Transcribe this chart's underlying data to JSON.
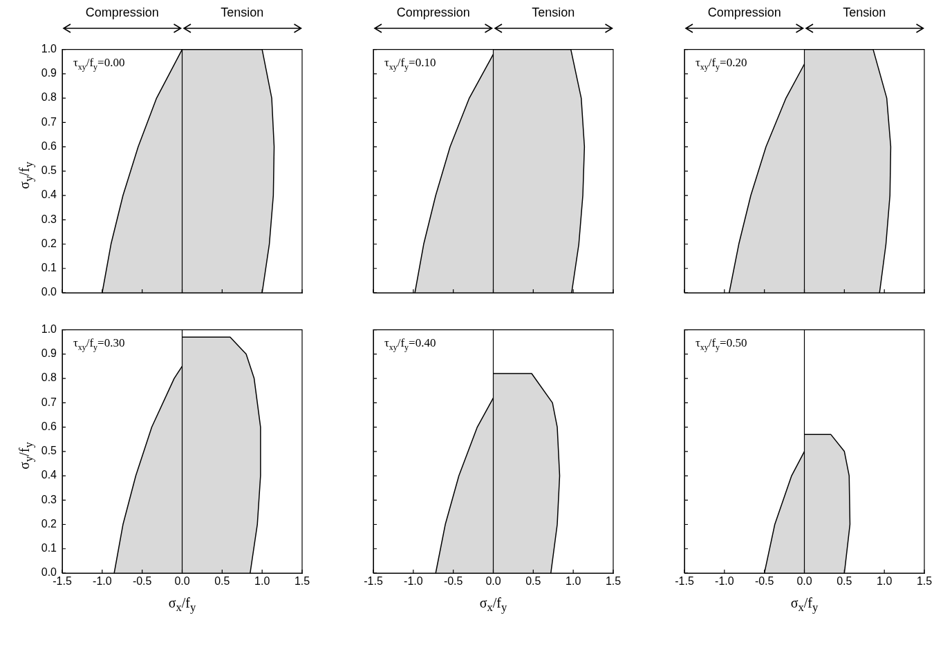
{
  "chart_data": [
    {
      "type": "area",
      "annotations": [
        "Compression",
        "Tension",
        "τ$_{xy}$/f$_{y}$=0.00"
      ],
      "ylabel": "σ$_{y}$/f$_{y}$",
      "tick_labels": "y",
      "xlim": [
        -1.5,
        1.5
      ],
      "xticks": [
        {
          "value": -1.5,
          "label": null
        },
        {
          "value": -1,
          "label": null
        },
        {
          "value": -0.5,
          "label": null
        },
        {
          "value": 0,
          "label": null
        },
        {
          "value": 0.5,
          "label": null
        },
        {
          "value": 1,
          "label": null
        },
        {
          "value": 1.5,
          "label": null
        }
      ],
      "ylim": [
        0,
        1
      ],
      "yticks": [
        {
          "value": 0,
          "label": "0.0"
        },
        {
          "value": 0.1,
          "label": "0.1"
        },
        {
          "value": 0.2,
          "label": "0.2"
        },
        {
          "value": 0.3,
          "label": "0.3"
        },
        {
          "value": 0.4,
          "label": "0.4"
        },
        {
          "value": 0.5,
          "label": "0.5"
        },
        {
          "value": 0.6,
          "label": "0.6"
        },
        {
          "value": 0.7,
          "label": "0.7"
        },
        {
          "value": 0.8,
          "label": "0.8"
        },
        {
          "value": 0.9,
          "label": "0.9"
        },
        {
          "value": 1,
          "label": "1.0"
        }
      ],
      "ref_lines": [
        {
          "axis": "x",
          "value": 0
        }
      ],
      "series": [
        {
          "color": "#000000",
          "x": [
            -1.0,
            -0.89,
            -0.74,
            -0.55,
            -0.32,
            0
          ],
          "values": [
            0,
            0.2,
            0.4,
            0.6,
            0.8,
            1.0
          ]
        },
        {
          "color": "#000000",
          "x": [
            0,
            1.0,
            1.12,
            1.15,
            1.14,
            1.09,
            1.0
          ],
          "values": [
            1.0,
            1.0,
            0.8,
            0.6,
            0.4,
            0.2,
            0
          ]
        }
      ]
    },
    {
      "type": "area",
      "annotations": [
        "Compression",
        "Tension",
        "τ$_{xy}$/f$_{y}$=0.10"
      ],
      "tick_labels": false,
      "xlim": [
        -1.5,
        1.5
      ],
      "xticks": [
        {
          "value": -1.5,
          "label": null
        },
        {
          "value": -1,
          "label": null
        },
        {
          "value": -0.5,
          "label": null
        },
        {
          "value": 0,
          "label": null
        },
        {
          "value": 0.5,
          "label": null
        },
        {
          "value": 1,
          "label": null
        },
        {
          "value": 1.5,
          "label": null
        }
      ],
      "ylim": [
        0,
        1
      ],
      "yticks": [
        {
          "value": 0,
          "label": null
        },
        {
          "value": 0.1,
          "label": null
        },
        {
          "value": 0.2,
          "label": null
        },
        {
          "value": 0.3,
          "label": null
        },
        {
          "value": 0.4,
          "label": null
        },
        {
          "value": 0.5,
          "label": null
        },
        {
          "value": 0.6,
          "label": null
        },
        {
          "value": 0.7,
          "label": null
        },
        {
          "value": 0.8,
          "label": null
        },
        {
          "value": 0.9,
          "label": null
        },
        {
          "value": 1,
          "label": null
        }
      ],
      "ref_lines": [
        {
          "axis": "x",
          "value": 0
        }
      ],
      "series": [
        {
          "color": "#000000",
          "x": [
            -0.98,
            -0.87,
            -0.72,
            -0.54,
            -0.3,
            0
          ],
          "values": [
            0,
            0.2,
            0.4,
            0.6,
            0.8,
            0.98
          ]
        },
        {
          "color": "#000000",
          "x": [
            0,
            0.97,
            1.1,
            1.14,
            1.12,
            1.07,
            0.98
          ],
          "values": [
            1.0,
            1.0,
            0.8,
            0.6,
            0.4,
            0.2,
            0
          ]
        }
      ]
    },
    {
      "type": "area",
      "annotations": [
        "Compression",
        "Tension",
        "τ$_{xy}$/f$_{y}$=0.20"
      ],
      "tick_labels": false,
      "xlim": [
        -1.5,
        1.5
      ],
      "xticks": [
        {
          "value": -1.5,
          "label": null
        },
        {
          "value": -1,
          "label": null
        },
        {
          "value": -0.5,
          "label": null
        },
        {
          "value": 0,
          "label": null
        },
        {
          "value": 0.5,
          "label": null
        },
        {
          "value": 1,
          "label": null
        },
        {
          "value": 1.5,
          "label": null
        }
      ],
      "ylim": [
        0,
        1
      ],
      "yticks": [
        {
          "value": 0,
          "label": null
        },
        {
          "value": 0.1,
          "label": null
        },
        {
          "value": 0.2,
          "label": null
        },
        {
          "value": 0.3,
          "label": null
        },
        {
          "value": 0.4,
          "label": null
        },
        {
          "value": 0.5,
          "label": null
        },
        {
          "value": 0.6,
          "label": null
        },
        {
          "value": 0.7,
          "label": null
        },
        {
          "value": 0.8,
          "label": null
        },
        {
          "value": 0.9,
          "label": null
        },
        {
          "value": 1,
          "label": null
        }
      ],
      "ref_lines": [
        {
          "axis": "x",
          "value": 0
        }
      ],
      "series": [
        {
          "color": "#000000",
          "x": [
            -0.94,
            -0.82,
            -0.67,
            -0.48,
            -0.23,
            0
          ],
          "values": [
            0,
            0.2,
            0.4,
            0.6,
            0.8,
            0.94
          ]
        },
        {
          "color": "#000000",
          "x": [
            0,
            0.86,
            1.03,
            1.08,
            1.07,
            1.02,
            0.94
          ],
          "values": [
            1.0,
            1.0,
            0.8,
            0.6,
            0.4,
            0.2,
            0
          ]
        }
      ]
    },
    {
      "type": "area",
      "annotations": [
        "τ$_{xy}$/f$_{y}$=0.30"
      ],
      "ylabel": "σ$_{y}$/f$_{y}$",
      "xlabel": "σ$_{x}$/f$_{y}$",
      "xlim": [
        -1.5,
        1.5
      ],
      "xticks": [
        {
          "value": -1.5,
          "label": "-1.5"
        },
        {
          "value": -1,
          "label": "-1.0"
        },
        {
          "value": -0.5,
          "label": "-0.5"
        },
        {
          "value": 0,
          "label": "0.0"
        },
        {
          "value": 0.5,
          "label": "0.5"
        },
        {
          "value": 1,
          "label": "1.0"
        },
        {
          "value": 1.5,
          "label": "1.5"
        }
      ],
      "ylim": [
        0,
        1
      ],
      "yticks": [
        {
          "value": 0,
          "label": "0.0"
        },
        {
          "value": 0.1,
          "label": "0.1"
        },
        {
          "value": 0.2,
          "label": "0.2"
        },
        {
          "value": 0.3,
          "label": "0.3"
        },
        {
          "value": 0.4,
          "label": "0.4"
        },
        {
          "value": 0.5,
          "label": "0.5"
        },
        {
          "value": 0.6,
          "label": "0.6"
        },
        {
          "value": 0.7,
          "label": "0.7"
        },
        {
          "value": 0.8,
          "label": "0.8"
        },
        {
          "value": 0.9,
          "label": "0.9"
        },
        {
          "value": 1,
          "label": "1.0"
        }
      ],
      "ref_lines": [
        {
          "axis": "x",
          "value": 0
        }
      ],
      "series": [
        {
          "color": "#000000",
          "x": [
            -0.85,
            -0.74,
            -0.58,
            -0.38,
            -0.1,
            0
          ],
          "values": [
            0,
            0.2,
            0.4,
            0.6,
            0.8,
            0.85
          ]
        },
        {
          "color": "#000000",
          "x": [
            0,
            0.6,
            0.8,
            0.9,
            0.98,
            0.98,
            0.94,
            0.85
          ],
          "values": [
            0.97,
            0.97,
            0.9,
            0.8,
            0.6,
            0.4,
            0.2,
            0
          ]
        }
      ]
    },
    {
      "type": "area",
      "annotations": [
        "τ$_{xy}$/f$_{y}$=0.40"
      ],
      "xlabel": "σ$_{x}$/f$_{y}$",
      "tick_labels": "x",
      "xlim": [
        -1.5,
        1.5
      ],
      "xticks": [
        {
          "value": -1.5,
          "label": "-1.5"
        },
        {
          "value": -1,
          "label": "-1.0"
        },
        {
          "value": -0.5,
          "label": "-0.5"
        },
        {
          "value": 0,
          "label": "0.0"
        },
        {
          "value": 0.5,
          "label": "0.5"
        },
        {
          "value": 1,
          "label": "1.0"
        },
        {
          "value": 1.5,
          "label": "1.5"
        }
      ],
      "ylim": [
        0,
        1
      ],
      "yticks": [
        {
          "value": 0,
          "label": null
        },
        {
          "value": 0.1,
          "label": null
        },
        {
          "value": 0.2,
          "label": null
        },
        {
          "value": 0.3,
          "label": null
        },
        {
          "value": 0.4,
          "label": null
        },
        {
          "value": 0.5,
          "label": null
        },
        {
          "value": 0.6,
          "label": null
        },
        {
          "value": 0.7,
          "label": null
        },
        {
          "value": 0.8,
          "label": null
        },
        {
          "value": 0.9,
          "label": null
        },
        {
          "value": 1,
          "label": null
        }
      ],
      "ref_lines": [
        {
          "axis": "x",
          "value": 0
        }
      ],
      "series": [
        {
          "color": "#000000",
          "x": [
            -0.72,
            -0.6,
            -0.43,
            -0.2,
            0
          ],
          "values": [
            0,
            0.2,
            0.4,
            0.6,
            0.72
          ]
        },
        {
          "color": "#000000",
          "x": [
            0,
            0.48,
            0.74,
            0.8,
            0.83,
            0.8,
            0.72
          ],
          "values": [
            0.82,
            0.82,
            0.7,
            0.6,
            0.4,
            0.2,
            0
          ]
        }
      ]
    },
    {
      "type": "area",
      "annotations": [
        "τ$_{xy}$/f$_{y}$=0.50"
      ],
      "xlabel": "σ$_{x}$/f$_{y}$",
      "tick_labels": "x",
      "xlim": [
        -1.5,
        1.5
      ],
      "xticks": [
        {
          "value": -1.5,
          "label": "-1.5"
        },
        {
          "value": -1,
          "label": "-1.0"
        },
        {
          "value": -0.5,
          "label": "-0.5"
        },
        {
          "value": 0,
          "label": "0.0"
        },
        {
          "value": 0.5,
          "label": "0.5"
        },
        {
          "value": 1,
          "label": "1.0"
        },
        {
          "value": 1.5,
          "label": "1.5"
        }
      ],
      "ylim": [
        0,
        1
      ],
      "yticks": [
        {
          "value": 0,
          "label": null
        },
        {
          "value": 0.1,
          "label": null
        },
        {
          "value": 0.2,
          "label": null
        },
        {
          "value": 0.3,
          "label": null
        },
        {
          "value": 0.4,
          "label": null
        },
        {
          "value": 0.5,
          "label": null
        },
        {
          "value": 0.6,
          "label": null
        },
        {
          "value": 0.7,
          "label": null
        },
        {
          "value": 0.8,
          "label": null
        },
        {
          "value": 0.9,
          "label": null
        },
        {
          "value": 1,
          "label": null
        }
      ],
      "ref_lines": [
        {
          "axis": "x",
          "value": 0
        }
      ],
      "series": [
        {
          "color": "#000000",
          "x": [
            -0.5,
            -0.37,
            -0.16,
            0
          ],
          "values": [
            0,
            0.2,
            0.4,
            0.5
          ]
        },
        {
          "color": "#000000",
          "x": [
            0,
            0.33,
            0.5,
            0.56,
            0.57,
            0.5
          ],
          "values": [
            0.57,
            0.57,
            0.5,
            0.4,
            0.2,
            0
          ]
        }
      ]
    }
  ]
}
